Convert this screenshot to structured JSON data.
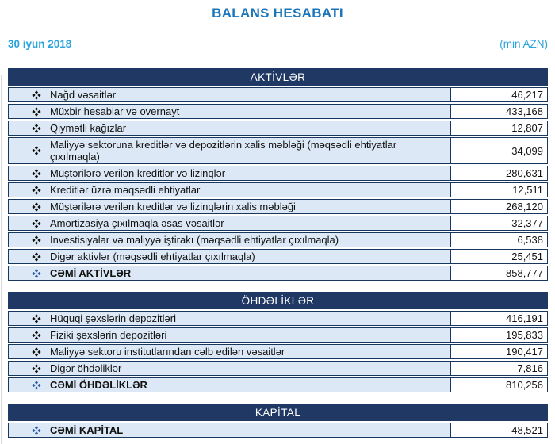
{
  "title": "BALANS HESABATI",
  "date": "30 iyun 2018",
  "unit": "(min AZN)",
  "colors": {
    "title": "#1b75bb",
    "accent_cyan": "#29a3dc",
    "section_header_bg": "#1f3864",
    "row_bg": "#dce8f5",
    "border": "#17375e",
    "bullet": "#111111",
    "total_bullet": "#2e5ea8"
  },
  "sections": [
    {
      "header": "AKTİVLƏR",
      "rows": [
        {
          "label": "Nağd vəsaitlər",
          "value": "46,217"
        },
        {
          "label": "Müxbir hesablar və overnayt",
          "value": "433,168"
        },
        {
          "label": "Qiymətli kağızlar",
          "value": "12,807"
        },
        {
          "label": "Maliyyə sektoruna kreditlər və depozitlərin xalis məbləği (məqsədli ehtiyatlar çıxılmaqla)",
          "value": "34,099"
        },
        {
          "label": "Müştərilərə verilən kreditlər və lizinqlər",
          "value": "280,631"
        },
        {
          "label": "Kreditlər üzrə məqsədli ehtiyatlar",
          "value": "12,511"
        },
        {
          "label": "Müştərilərə verilən kreditlər və lizinqlərin xalis məbləği",
          "value": "268,120"
        },
        {
          "label": "Amortizasiya çıxılmaqla əsas vəsaitlər",
          "value": "32,377"
        },
        {
          "label": "İnvestisiyalar və maliyyə iştirakı (məqsədli ehtiyatlar çıxılmaqla)",
          "value": "6,538"
        },
        {
          "label": "Digər aktivlər (məqsədli ehtiyatlar çıxılmaqla)",
          "value": "25,451"
        },
        {
          "label": "CƏMİ AKTİVLƏR",
          "value": "858,777",
          "total": true
        }
      ]
    },
    {
      "header": "ÖHDƏLİKLƏR",
      "rows": [
        {
          "label": "Hüquqi şəxslərin depozitləri",
          "value": "416,191"
        },
        {
          "label": "Fiziki şəxslərin depozitləri",
          "value": "195,833"
        },
        {
          "label": "Maliyyə sektoru institutlarından cəlb edilən vəsaitlər",
          "value": "190,417"
        },
        {
          "label": "Digər öhdəliklər",
          "value": "7,816"
        },
        {
          "label": "CƏMİ ÖHDƏLİKLƏR",
          "value": "810,256",
          "total": true
        }
      ]
    },
    {
      "header": "KAPİTAL",
      "rows": [
        {
          "label": "CƏMİ KAPİTAL",
          "value": "48,521",
          "total": true
        }
      ]
    }
  ]
}
